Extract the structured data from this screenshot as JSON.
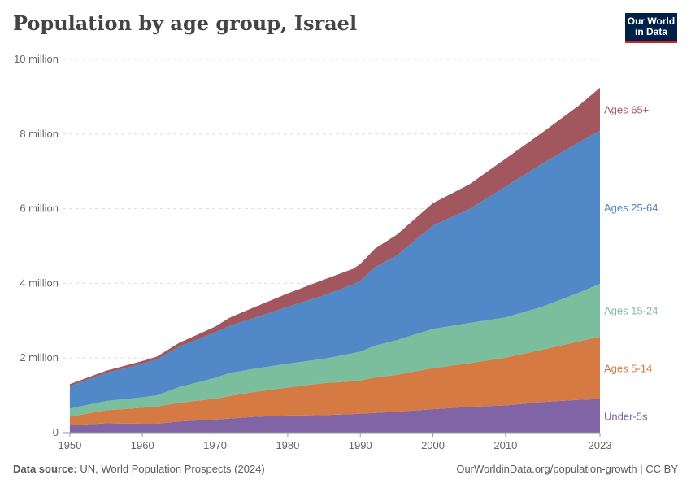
{
  "title": "Population by age group, Israel",
  "logo": {
    "line1": "Our World",
    "line2": "in Data"
  },
  "footer": {
    "source_label": "Data source:",
    "source_text": "UN, World Population Prospects (2024)",
    "url": "OurWorldinData.org/population-growth | CC BY"
  },
  "colors": {
    "under5": "#8064a6",
    "ages5_14": "#d57a43",
    "ages15_24": "#7bbe9d",
    "ages25_64": "#5088c8",
    "ages65": "#a2575e"
  },
  "chart_data": {
    "type": "area",
    "stacked": true,
    "title": "Population by age group, Israel",
    "x": [
      1950,
      1955,
      1960,
      1962,
      1965,
      1970,
      1972,
      1975,
      1980,
      1985,
      1989,
      1990,
      1992,
      1995,
      2000,
      2005,
      2010,
      2015,
      2020,
      2023
    ],
    "series": [
      {
        "name": "Under-5s",
        "key": "under5",
        "values": [
          0.2,
          0.25,
          0.24,
          0.24,
          0.3,
          0.35,
          0.38,
          0.42,
          0.46,
          0.47,
          0.5,
          0.51,
          0.53,
          0.56,
          0.63,
          0.69,
          0.73,
          0.82,
          0.88,
          0.9
        ]
      },
      {
        "name": "Ages 5-14",
        "key": "ages5_14",
        "values": [
          0.23,
          0.35,
          0.43,
          0.46,
          0.5,
          0.56,
          0.6,
          0.66,
          0.75,
          0.86,
          0.88,
          0.89,
          0.95,
          0.99,
          1.1,
          1.17,
          1.28,
          1.4,
          1.56,
          1.67
        ]
      },
      {
        "name": "Ages 15-24",
        "key": "ages15_24",
        "values": [
          0.22,
          0.25,
          0.28,
          0.3,
          0.42,
          0.56,
          0.62,
          0.62,
          0.64,
          0.65,
          0.75,
          0.77,
          0.85,
          0.93,
          1.05,
          1.08,
          1.08,
          1.15,
          1.3,
          1.42
        ]
      },
      {
        "name": "Ages 25-64",
        "key": "ages25_64",
        "values": [
          0.6,
          0.75,
          0.9,
          0.96,
          1.08,
          1.22,
          1.26,
          1.35,
          1.52,
          1.7,
          1.84,
          1.9,
          2.1,
          2.27,
          2.77,
          3.05,
          3.5,
          3.83,
          4.03,
          4.1
        ]
      },
      {
        "name": "Ages 65+",
        "key": "ages65",
        "values": [
          0.05,
          0.06,
          0.07,
          0.08,
          0.1,
          0.15,
          0.22,
          0.28,
          0.36,
          0.42,
          0.42,
          0.45,
          0.5,
          0.55,
          0.6,
          0.66,
          0.75,
          0.83,
          0.98,
          1.15
        ]
      }
    ],
    "ylim": [
      0,
      10
    ],
    "y_unit": "million",
    "yticks": [
      {
        "value": 0,
        "label": "0"
      },
      {
        "value": 2,
        "label": "2 million"
      },
      {
        "value": 4,
        "label": "4 million"
      },
      {
        "value": 6,
        "label": "6 million"
      },
      {
        "value": 8,
        "label": "8 million"
      },
      {
        "value": 10,
        "label": "10 million"
      }
    ],
    "xticks": [
      {
        "value": 1950,
        "label": "1950"
      },
      {
        "value": 1960,
        "label": "1960"
      },
      {
        "value": 1970,
        "label": "1970"
      },
      {
        "value": 1980,
        "label": "1980"
      },
      {
        "value": 1990,
        "label": "1990"
      },
      {
        "value": 2000,
        "label": "2000"
      },
      {
        "value": 2010,
        "label": "2010"
      },
      {
        "value": 2023,
        "label": "2023"
      }
    ],
    "xlim": [
      1949,
      2023
    ],
    "grid": "horizontal dashed",
    "legend": "inline-right"
  }
}
